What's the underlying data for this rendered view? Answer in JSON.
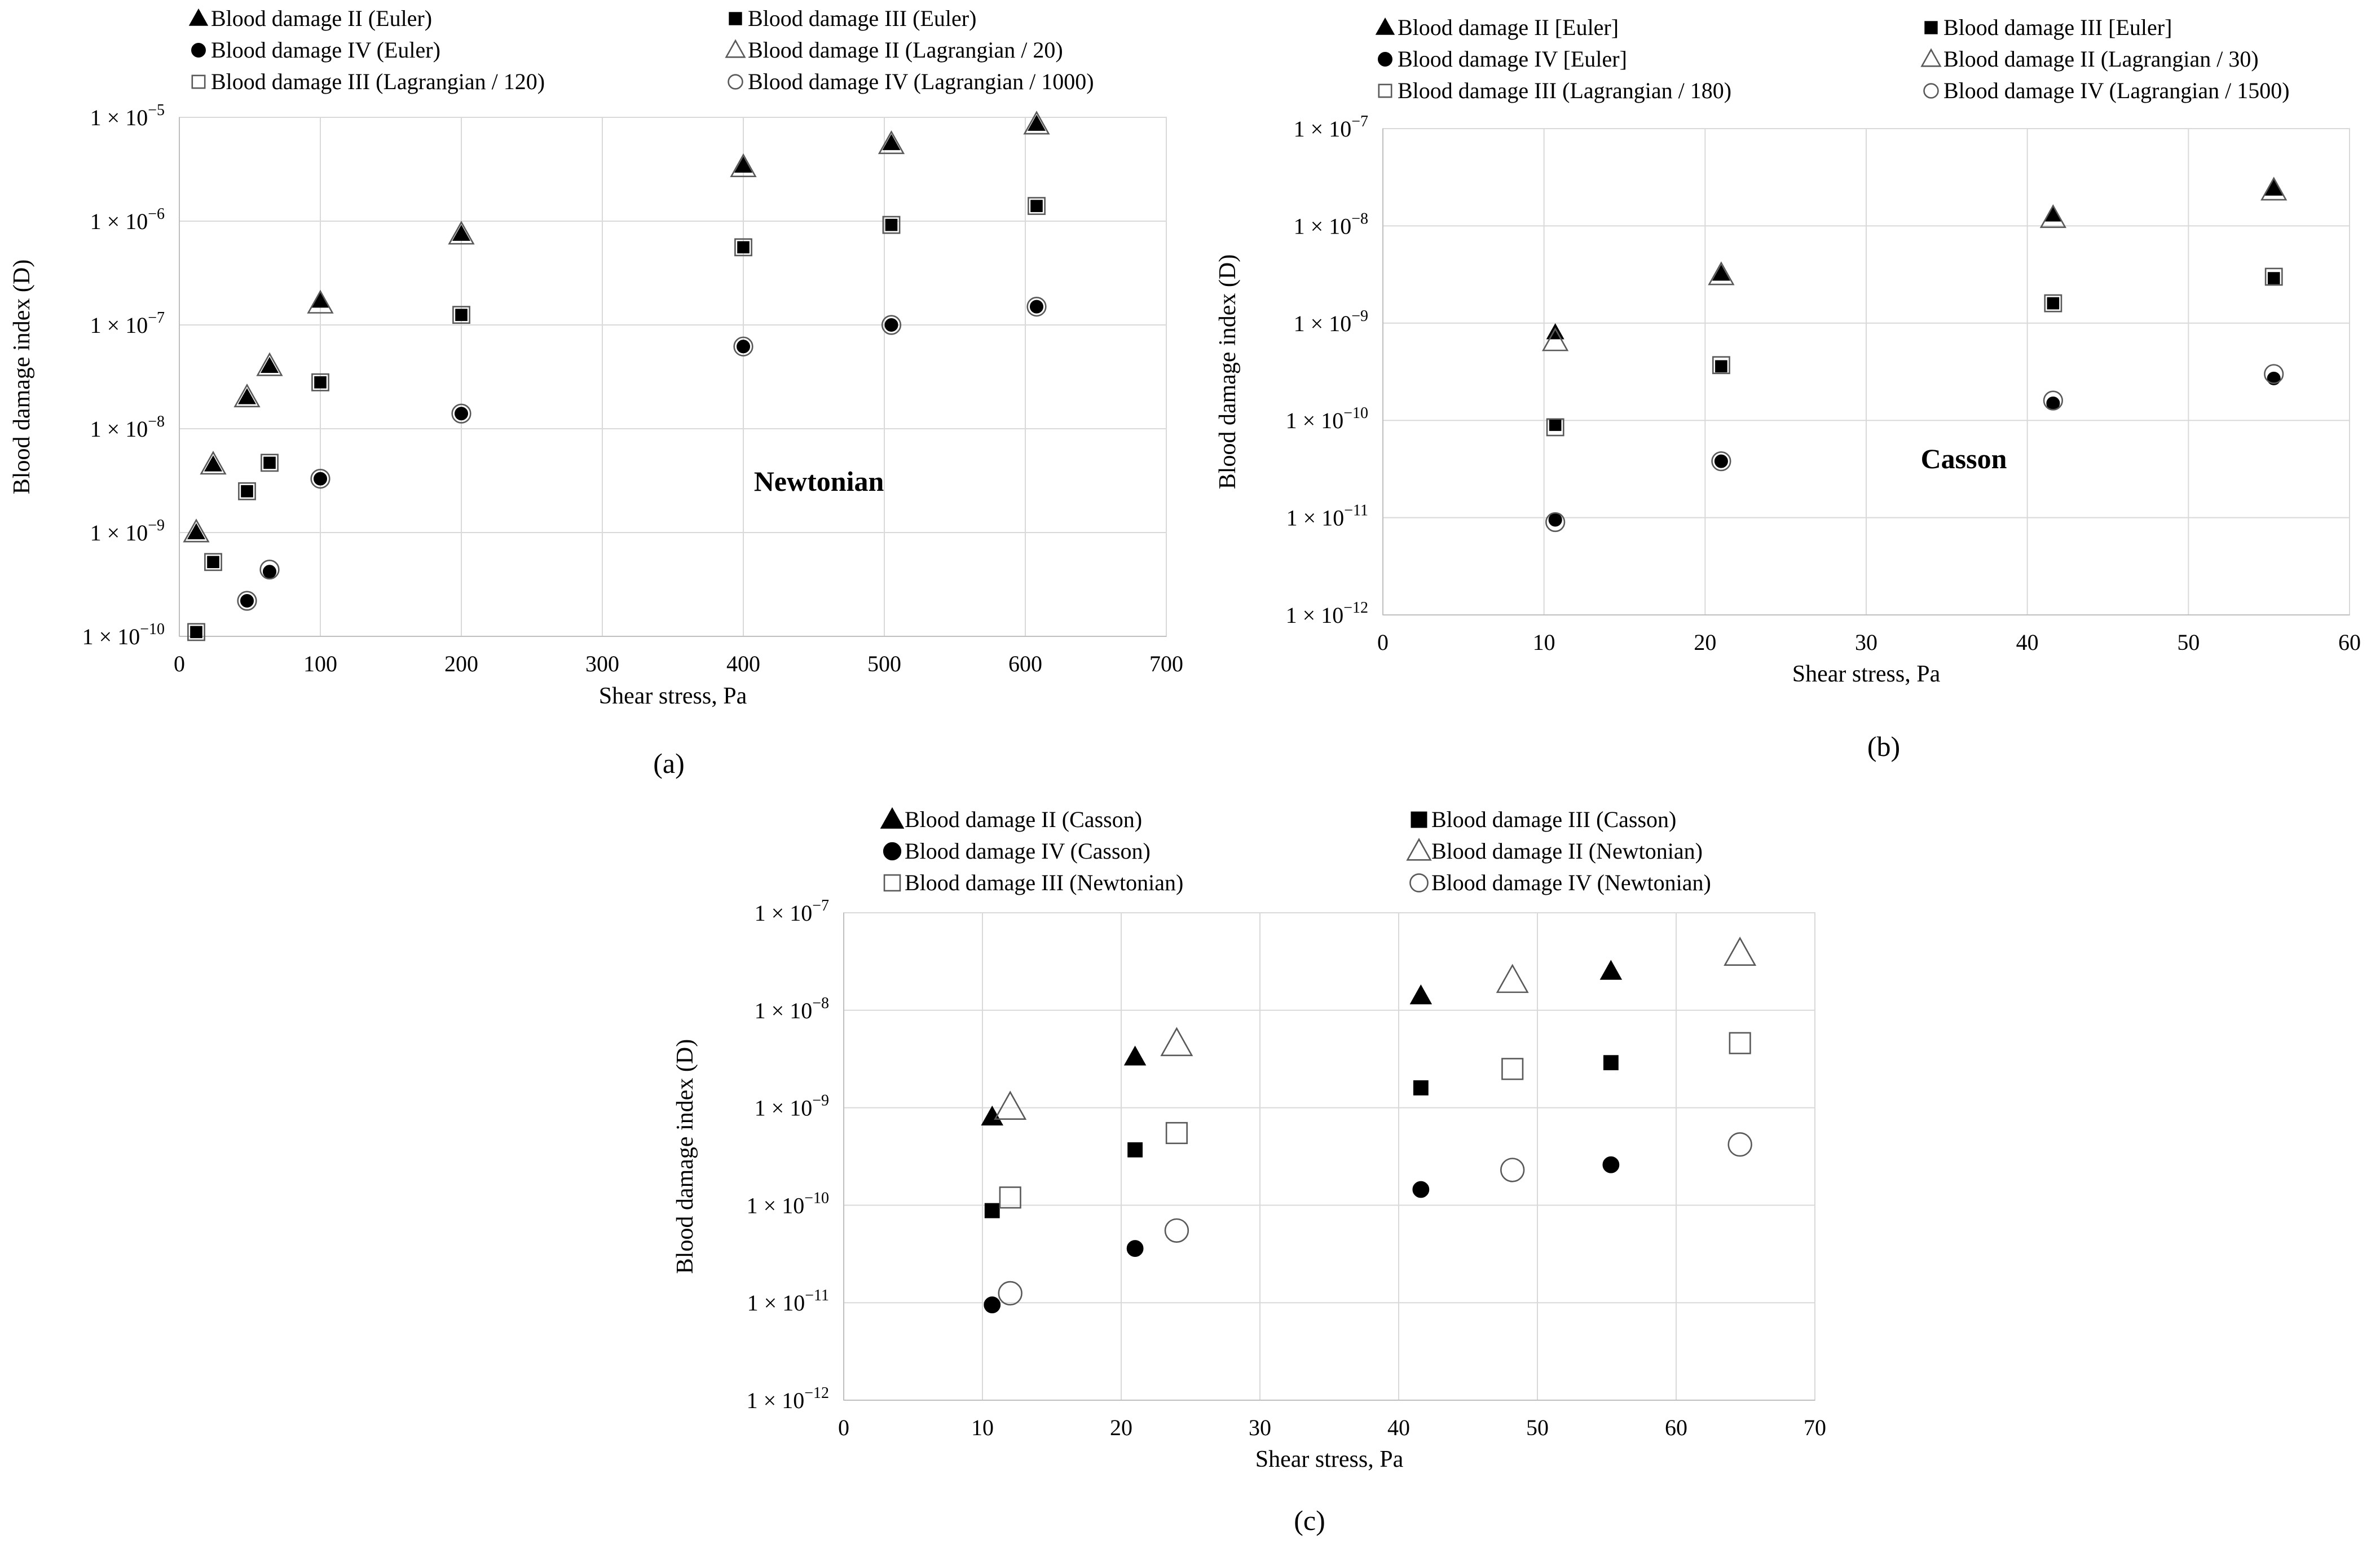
{
  "chart_data": [
    {
      "type": "scatter",
      "panel_label": "(a)",
      "annotation": "Newtonian",
      "xlabel": "Shear stress, Pa",
      "ylabel": "Blood damage index (D)",
      "xlim": [
        0,
        700
      ],
      "ylim": [
        1e-10,
        1e-05
      ],
      "yscale": "log",
      "grid": true,
      "legend_position": "top",
      "x_ticks": [
        "0",
        "100",
        "200",
        "300",
        "400",
        "500",
        "600",
        "700"
      ],
      "y_ticks": [
        {
          "mantissa": "1 × 10",
          "exponent": "−10"
        },
        {
          "mantissa": "1 × 10",
          "exponent": "−9"
        },
        {
          "mantissa": "1 × 10",
          "exponent": "−8"
        },
        {
          "mantissa": "1 × 10",
          "exponent": "−7"
        },
        {
          "mantissa": "1 × 10",
          "exponent": "−6"
        },
        {
          "mantissa": "1 × 10",
          "exponent": "−5"
        }
      ],
      "series": [
        {
          "name": "Blood damage II (Euler)",
          "marker": "triangle",
          "filled": true,
          "x": [
            12,
            24,
            48,
            64,
            100,
            200,
            400,
            505,
            608
          ],
          "y": [
            1e-09,
            4.5e-09,
            2e-08,
            4e-08,
            1.7e-07,
            7.5e-07,
            3.4e-06,
            5.6e-06,
            8.6e-06
          ]
        },
        {
          "name": "Blood damage III (Euler)",
          "marker": "square",
          "filled": true,
          "x": [
            12,
            24,
            48,
            64,
            100,
            200,
            400,
            505,
            608
          ],
          "y": [
            1.1e-10,
            5.2e-10,
            2.5e-09,
            4.7e-09,
            2.8e-08,
            1.25e-07,
            5.6e-07,
            9.2e-07,
            1.4e-06
          ]
        },
        {
          "name": "Blood damage IV (Euler)",
          "marker": "circle",
          "filled": true,
          "x": [
            48,
            64,
            100,
            200,
            400,
            505,
            608
          ],
          "y": [
            2.2e-10,
            4.2e-10,
            3.3e-09,
            1.4e-08,
            6.2e-08,
            1e-07,
            1.5e-07
          ]
        },
        {
          "name": "Blood damage II (Lagrangian / 20)",
          "marker": "triangle",
          "filled": false,
          "x": [
            12,
            24,
            48,
            64,
            100,
            200,
            400,
            505,
            608
          ],
          "y": [
            1e-09,
            4.5e-09,
            2e-08,
            4e-08,
            1.6e-07,
            7.4e-07,
            3.3e-06,
            5.5e-06,
            8.5e-06
          ]
        },
        {
          "name": "Blood damage III (Lagrangian / 120)",
          "marker": "square",
          "filled": false,
          "x": [
            12,
            24,
            48,
            64,
            100,
            200,
            400,
            505,
            608
          ],
          "y": [
            1.1e-10,
            5.2e-10,
            2.5e-09,
            4.7e-09,
            2.8e-08,
            1.25e-07,
            5.6e-07,
            9.2e-07,
            1.4e-06
          ]
        },
        {
          "name": "Blood damage IV (Lagrangian / 1000)",
          "marker": "circle",
          "filled": false,
          "x": [
            48,
            64,
            100,
            200,
            400,
            505,
            608
          ],
          "y": [
            2.2e-10,
            4.4e-10,
            3.3e-09,
            1.4e-08,
            6.2e-08,
            1e-07,
            1.5e-07
          ]
        }
      ]
    },
    {
      "type": "scatter",
      "panel_label": "(b)",
      "annotation": "Casson",
      "xlabel": "Shear stress, Pa",
      "ylabel": "Blood damage index (D)",
      "xlim": [
        0,
        60
      ],
      "ylim": [
        1e-12,
        1e-07
      ],
      "yscale": "log",
      "grid": true,
      "legend_position": "top",
      "x_ticks": [
        "0",
        "10",
        "20",
        "30",
        "40",
        "50",
        "60"
      ],
      "y_ticks": [
        {
          "mantissa": "1 × 10",
          "exponent": "−12"
        },
        {
          "mantissa": "1 × 10",
          "exponent": "−11"
        },
        {
          "mantissa": "1 × 10",
          "exponent": "−10"
        },
        {
          "mantissa": "1 × 10",
          "exponent": "−9"
        },
        {
          "mantissa": "1 × 10",
          "exponent": "−8"
        },
        {
          "mantissa": "1 × 10",
          "exponent": "−7"
        }
      ],
      "series": [
        {
          "name": "Blood damage II [Euler]",
          "marker": "triangle",
          "filled": true,
          "x": [
            10.7,
            21,
            41.6,
            55.3
          ],
          "y": [
            8e-10,
            3.2e-09,
            1.3e-08,
            2.4e-08
          ]
        },
        {
          "name": "Blood damage III [Euler]",
          "marker": "square",
          "filled": true,
          "x": [
            10.7,
            21,
            41.6,
            55.3
          ],
          "y": [
            9e-11,
            3.6e-10,
            1.6e-09,
            2.9e-09
          ]
        },
        {
          "name": "Blood damage IV [Euler]",
          "marker": "circle",
          "filled": true,
          "x": [
            10.7,
            21,
            41.6,
            55.3
          ],
          "y": [
            9.5e-12,
            3.8e-11,
            1.5e-10,
            2.7e-10
          ]
        },
        {
          "name": "Blood damage II (Lagrangian / 30)",
          "marker": "triangle",
          "filled": false,
          "x": [
            10.7,
            21,
            41.6,
            55.3
          ],
          "y": [
            6.5e-10,
            3.1e-09,
            1.2e-08,
            2.3e-08
          ]
        },
        {
          "name": "Blood damage III (Lagrangian / 180)",
          "marker": "square",
          "filled": false,
          "x": [
            10.7,
            21,
            41.6,
            55.3
          ],
          "y": [
            8.5e-11,
            3.7e-10,
            1.6e-09,
            3e-09
          ]
        },
        {
          "name": "Blood damage IV (Lagrangian / 1500)",
          "marker": "circle",
          "filled": false,
          "x": [
            10.7,
            21,
            41.6,
            55.3
          ],
          "y": [
            9e-12,
            3.8e-11,
            1.6e-10,
            3e-10
          ]
        }
      ]
    },
    {
      "type": "scatter",
      "panel_label": "(c)",
      "annotation": "",
      "xlabel": "Shear stress, Pa",
      "ylabel": "Blood damage index (D)",
      "xlim": [
        0,
        70
      ],
      "ylim": [
        1e-12,
        1e-07
      ],
      "yscale": "log",
      "grid": true,
      "legend_position": "top",
      "x_ticks": [
        "0",
        "10",
        "20",
        "30",
        "40",
        "50",
        "60",
        "70"
      ],
      "y_ticks": [
        {
          "mantissa": "1 × 10",
          "exponent": "−12"
        },
        {
          "mantissa": "1 × 10",
          "exponent": "−11"
        },
        {
          "mantissa": "1 × 10",
          "exponent": "−10"
        },
        {
          "mantissa": "1 × 10",
          "exponent": "−9"
        },
        {
          "mantissa": "1 × 10",
          "exponent": "−8"
        },
        {
          "mantissa": "1 × 10",
          "exponent": "−7"
        }
      ],
      "series": [
        {
          "name": "Blood damage II (Casson)",
          "marker": "triangle",
          "filled": true,
          "x": [
            10.7,
            21,
            41.6,
            55.3
          ],
          "y": [
            8e-10,
            3.3e-09,
            1.4e-08,
            2.5e-08
          ]
        },
        {
          "name": "Blood damage III (Casson)",
          "marker": "square",
          "filled": true,
          "x": [
            10.7,
            21,
            41.6,
            55.3
          ],
          "y": [
            8.8e-11,
            3.7e-10,
            1.6e-09,
            2.9e-09
          ]
        },
        {
          "name": "Blood damage IV (Casson)",
          "marker": "circle",
          "filled": true,
          "x": [
            10.7,
            21,
            41.6,
            55.3
          ],
          "y": [
            9.5e-12,
            3.6e-11,
            1.45e-10,
            2.6e-10
          ]
        },
        {
          "name": "Blood damage II (Newtonian)",
          "marker": "triangle",
          "filled": false,
          "x": [
            12,
            24,
            48.2,
            64.6
          ],
          "y": [
            1e-09,
            4.5e-09,
            2e-08,
            3.8e-08
          ]
        },
        {
          "name": "Blood damage III (Newtonian)",
          "marker": "square",
          "filled": false,
          "x": [
            12,
            24,
            48.2,
            64.6
          ],
          "y": [
            1.2e-10,
            5.5e-10,
            2.5e-09,
            4.6e-09
          ]
        },
        {
          "name": "Blood damage IV (Newtonian)",
          "marker": "circle",
          "filled": false,
          "x": [
            12,
            24,
            48.2,
            64.6
          ],
          "y": [
            1.25e-11,
            5.5e-11,
            2.3e-10,
            4.2e-10
          ]
        }
      ]
    }
  ]
}
